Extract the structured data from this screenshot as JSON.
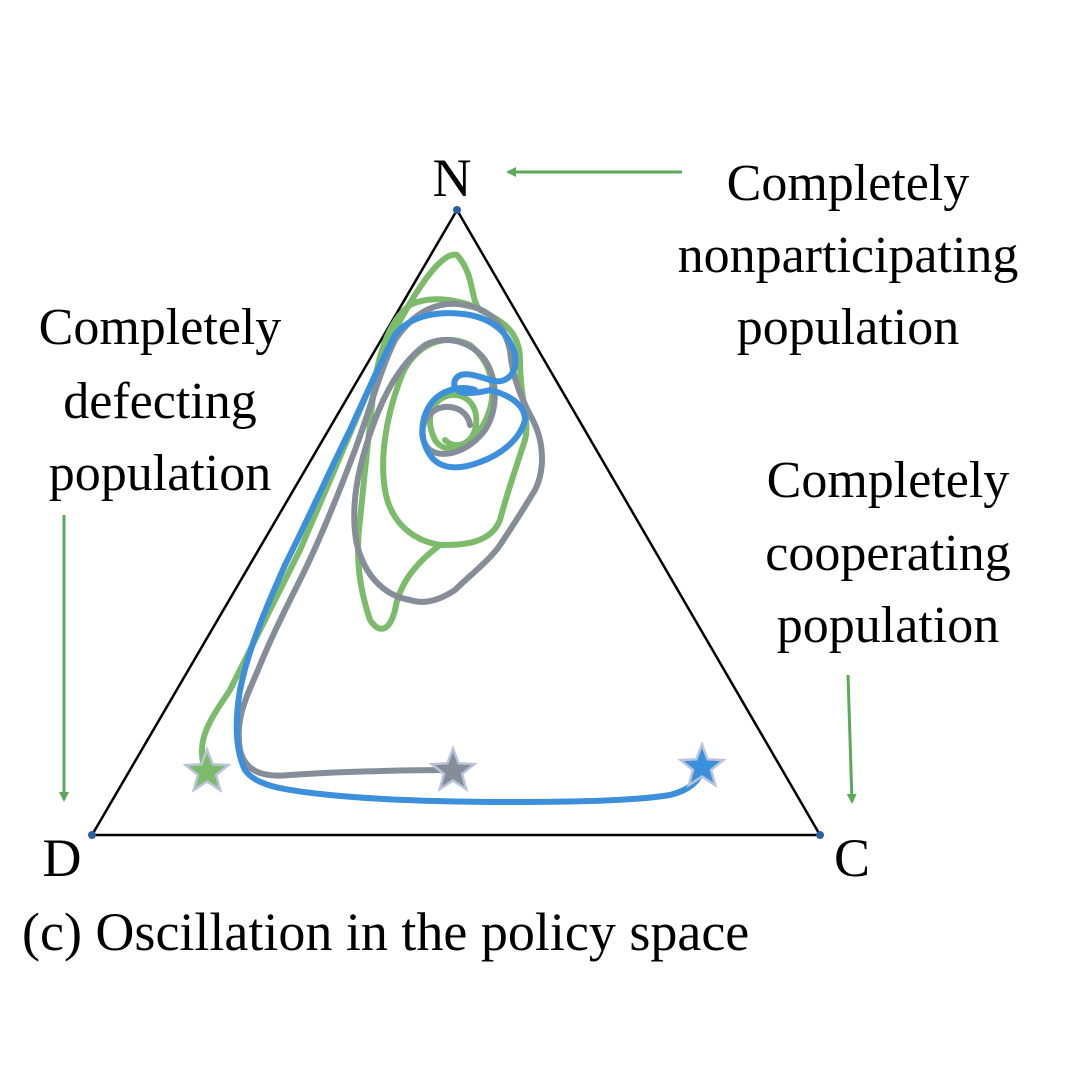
{
  "vertices": {
    "top": "N",
    "left": "D",
    "right": "C"
  },
  "annotations": {
    "nonparticipating": [
      "Completely",
      "nonparticipating",
      "population"
    ],
    "defecting": [
      "Completely",
      "defecting",
      "population"
    ],
    "cooperating": [
      "Completely",
      "cooperating",
      "population"
    ]
  },
  "caption": "(c) Oscillation in the policy space",
  "colors": {
    "triangle": "#000000",
    "arrow": "#5aaa5a",
    "green": "#7cbb6a",
    "gray": "#858d98",
    "blue": "#3b8fdb",
    "vertex_dot": "#2b5f9e"
  },
  "trajectories": [
    {
      "color_key": "green",
      "start_marker": "star"
    },
    {
      "color_key": "gray",
      "start_marker": "star"
    },
    {
      "color_key": "blue",
      "start_marker": "star"
    }
  ]
}
